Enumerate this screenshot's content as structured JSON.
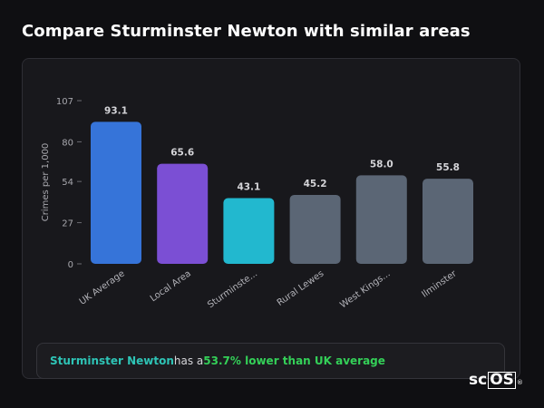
{
  "page": {
    "title": "Compare Sturminster Newton with similar areas"
  },
  "chart_data": {
    "type": "bar",
    "title": "",
    "xlabel": "",
    "ylabel": "Crimes per 1,000",
    "ylim": [
      0,
      107
    ],
    "yticks": [
      0,
      27,
      54,
      80,
      107
    ],
    "grid": false,
    "categories": [
      "UK Average",
      "Local Area",
      "Sturminste...",
      "Rural Lewes",
      "West Kings...",
      "Ilminster"
    ],
    "values": [
      93.1,
      65.6,
      43.1,
      45.2,
      58.0,
      55.8
    ],
    "value_labels": [
      "93.1",
      "65.6",
      "43.1",
      "45.2",
      "58.0",
      "55.8"
    ],
    "colors": [
      "#3674d9",
      "#7b4fd4",
      "#22b8cf",
      "#5b6675",
      "#5b6675",
      "#5b6675"
    ]
  },
  "summary": {
    "place": "Sturminster Newton",
    "middle": " has a ",
    "difference": "53.7% lower than UK average"
  },
  "logo": {
    "prefix": "sc",
    "boxed": "OS",
    "mark": "®"
  }
}
